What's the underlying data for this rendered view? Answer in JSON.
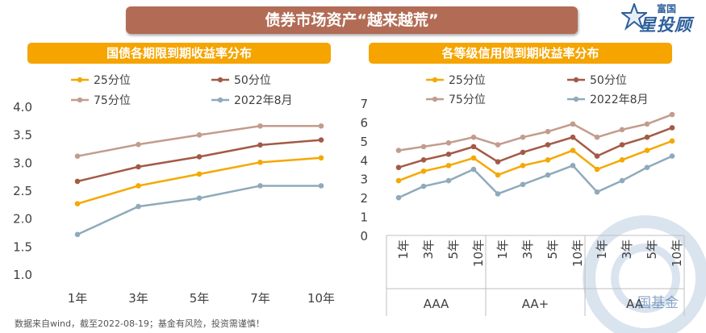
{
  "banner_title": "债券市场资产“越来越荒”",
  "logo": {
    "small_text": "富国",
    "big_text": "星投顾"
  },
  "footnote": "数据来自wind，截至2022-08-19；基金有风险，投资需谨慎！",
  "watermark": "国基金",
  "colors": {
    "p25": "#f5a800",
    "p50": "#a35a45",
    "p75": "#c29c8d",
    "aug2022": "#8faabb",
    "banner": "#b26c55",
    "panel_title": "#f5a400"
  },
  "chart_data": [
    {
      "type": "line",
      "title": "国债各期限到期收益率分布",
      "categories": [
        "1年",
        "3年",
        "5年",
        "7年",
        "10年"
      ],
      "ylim": [
        1.0,
        4.0
      ],
      "yticks": [
        "4.0",
        "3.5",
        "3.0",
        "2.5",
        "2.0",
        "1.5",
        "1.0"
      ],
      "legend_placement": "top",
      "series": [
        {
          "name": "25分位",
          "color": "#f5a800",
          "values": [
            2.26,
            2.58,
            2.79,
            3.0,
            3.08
          ]
        },
        {
          "name": "50分位",
          "color": "#a35a45",
          "values": [
            2.66,
            2.92,
            3.1,
            3.31,
            3.4
          ]
        },
        {
          "name": "75分位",
          "color": "#c29c8d",
          "values": [
            3.11,
            3.32,
            3.49,
            3.65,
            3.65
          ]
        },
        {
          "name": "2022年8月",
          "color": "#8faabb",
          "values": [
            1.71,
            2.21,
            2.36,
            2.58,
            2.58
          ]
        }
      ]
    },
    {
      "type": "line",
      "title": "各等级信用债到期收益率分布",
      "groups": [
        {
          "label": "AAA",
          "categories": [
            "1年",
            "3年",
            "5年",
            "10年"
          ]
        },
        {
          "label": "AA+",
          "categories": [
            "1年",
            "3年",
            "5年",
            "10年"
          ]
        },
        {
          "label": "AA",
          "categories": [
            "1年",
            "3年",
            "5年",
            "10年"
          ]
        }
      ],
      "ylim": [
        0,
        7
      ],
      "yticks": [
        "7",
        "6",
        "5",
        "4",
        "3",
        "2",
        "1",
        "0"
      ],
      "legend_placement": "top",
      "series": [
        {
          "name": "25分位",
          "color": "#f5a800",
          "segments": [
            [
              2.9,
              3.4,
              3.7,
              4.1
            ],
            [
              3.2,
              3.7,
              4.0,
              4.5
            ],
            [
              3.5,
              4.0,
              4.5,
              5.0
            ]
          ]
        },
        {
          "name": "50分位",
          "color": "#a35a45",
          "segments": [
            [
              3.6,
              4.0,
              4.3,
              4.7
            ],
            [
              3.9,
              4.4,
              4.8,
              5.2
            ],
            [
              4.2,
              4.8,
              5.2,
              5.7
            ]
          ]
        },
        {
          "name": "75分位",
          "color": "#c29c8d",
          "segments": [
            [
              4.5,
              4.7,
              4.9,
              5.2
            ],
            [
              4.8,
              5.2,
              5.5,
              5.9
            ],
            [
              5.2,
              5.6,
              5.9,
              6.4
            ]
          ]
        },
        {
          "name": "2022年8月",
          "color": "#8faabb",
          "segments": [
            [
              2.0,
              2.6,
              2.9,
              3.5
            ],
            [
              2.2,
              2.7,
              3.2,
              3.7
            ],
            [
              2.3,
              2.9,
              3.6,
              4.2
            ]
          ]
        }
      ]
    }
  ]
}
